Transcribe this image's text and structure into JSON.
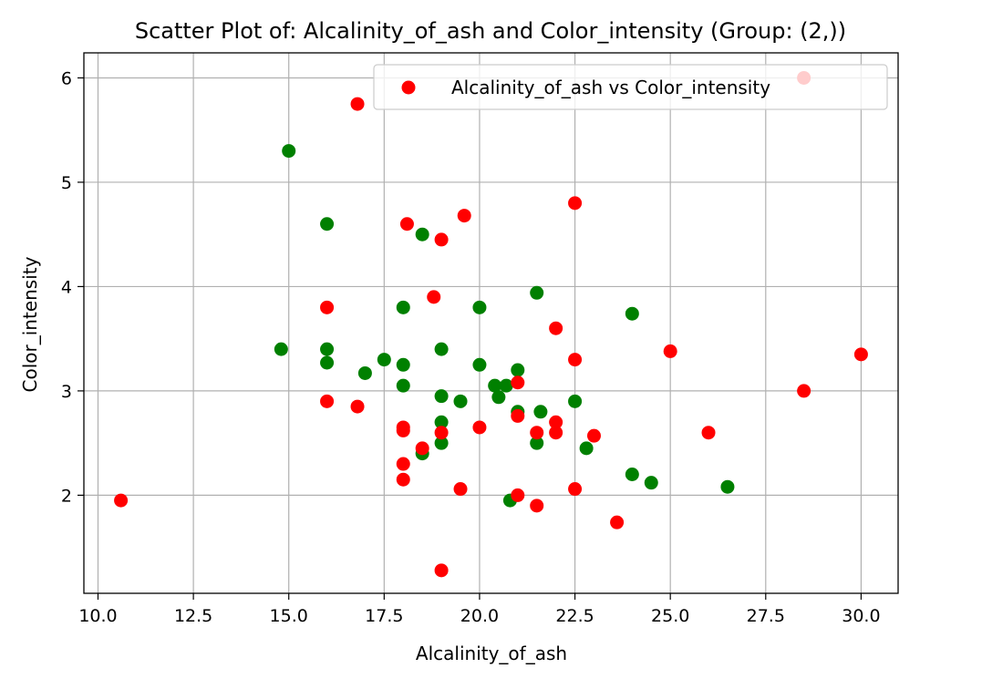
{
  "chart_data": {
    "type": "scatter",
    "title": "Scatter Plot of: Alcalinity_of_ash and Color_intensity (Group: (2,))",
    "xlabel": "Alcalinity_of_ash",
    "ylabel": "Color_intensity",
    "xlim": [
      9.63,
      30.97
    ],
    "ylim": [
      1.06,
      6.24
    ],
    "xticks": [
      10.0,
      12.5,
      15.0,
      17.5,
      20.0,
      22.5,
      25.0,
      27.5,
      30.0
    ],
    "xtick_labels": [
      "10.0",
      "12.5",
      "15.0",
      "17.5",
      "20.0",
      "22.5",
      "25.0",
      "27.5",
      "30.0"
    ],
    "yticks": [
      2,
      3,
      4,
      5,
      6
    ],
    "ytick_labels": [
      "2",
      "3",
      "4",
      "5",
      "6"
    ],
    "grid": true,
    "legend": {
      "position": "top-right",
      "entries": [
        {
          "label": "Alcalinity_of_ash vs Color_intensity",
          "color": "#ff0000"
        }
      ]
    },
    "series": [
      {
        "color": "#008000",
        "points": [
          [
            15.0,
            5.3
          ],
          [
            16.0,
            4.6
          ],
          [
            18.5,
            4.5
          ],
          [
            14.8,
            3.4
          ],
          [
            16.0,
            3.4
          ],
          [
            16.0,
            3.27
          ],
          [
            17.0,
            3.17
          ],
          [
            17.5,
            3.3
          ],
          [
            18.0,
            3.8
          ],
          [
            18.0,
            3.25
          ],
          [
            18.0,
            3.05
          ],
          [
            19.0,
            3.4
          ],
          [
            19.0,
            2.95
          ],
          [
            19.0,
            2.7
          ],
          [
            19.0,
            2.5
          ],
          [
            18.5,
            2.4
          ],
          [
            19.5,
            2.9
          ],
          [
            20.0,
            3.8
          ],
          [
            20.0,
            3.25
          ],
          [
            20.4,
            3.05
          ],
          [
            20.5,
            2.94
          ],
          [
            20.7,
            3.05
          ],
          [
            21.0,
            3.2
          ],
          [
            21.0,
            2.8
          ],
          [
            21.5,
            3.94
          ],
          [
            21.6,
            2.8
          ],
          [
            21.5,
            2.5
          ],
          [
            20.8,
            1.95
          ],
          [
            22.5,
            2.9
          ],
          [
            22.8,
            2.45
          ],
          [
            24.0,
            3.74
          ],
          [
            24.0,
            2.2
          ],
          [
            24.5,
            2.12
          ],
          [
            26.5,
            2.08
          ]
        ]
      },
      {
        "color": "#ff0000",
        "points": [
          [
            10.6,
            1.95
          ],
          [
            16.8,
            5.75
          ],
          [
            28.5,
            6.0
          ],
          [
            16.0,
            3.8
          ],
          [
            16.0,
            2.9
          ],
          [
            16.8,
            2.85
          ],
          [
            18.1,
            4.6
          ],
          [
            19.0,
            4.45
          ],
          [
            19.6,
            4.68
          ],
          [
            22.5,
            4.8
          ],
          [
            18.8,
            3.9
          ],
          [
            22.0,
            3.6
          ],
          [
            22.5,
            3.3
          ],
          [
            25.0,
            3.38
          ],
          [
            30.0,
            3.35
          ],
          [
            28.5,
            3.0
          ],
          [
            21.0,
            3.08
          ],
          [
            21.0,
            2.76
          ],
          [
            18.0,
            2.65
          ],
          [
            18.0,
            2.62
          ],
          [
            19.0,
            2.6
          ],
          [
            20.0,
            2.65
          ],
          [
            18.5,
            2.45
          ],
          [
            18.0,
            2.3
          ],
          [
            18.0,
            2.15
          ],
          [
            19.5,
            2.06
          ],
          [
            21.0,
            2.0
          ],
          [
            21.5,
            1.9
          ],
          [
            22.0,
            2.7
          ],
          [
            22.0,
            2.6
          ],
          [
            21.5,
            2.6
          ],
          [
            23.0,
            2.57
          ],
          [
            22.5,
            2.06
          ],
          [
            23.6,
            1.74
          ],
          [
            26.0,
            2.6
          ],
          [
            19.0,
            1.28
          ]
        ]
      }
    ]
  }
}
